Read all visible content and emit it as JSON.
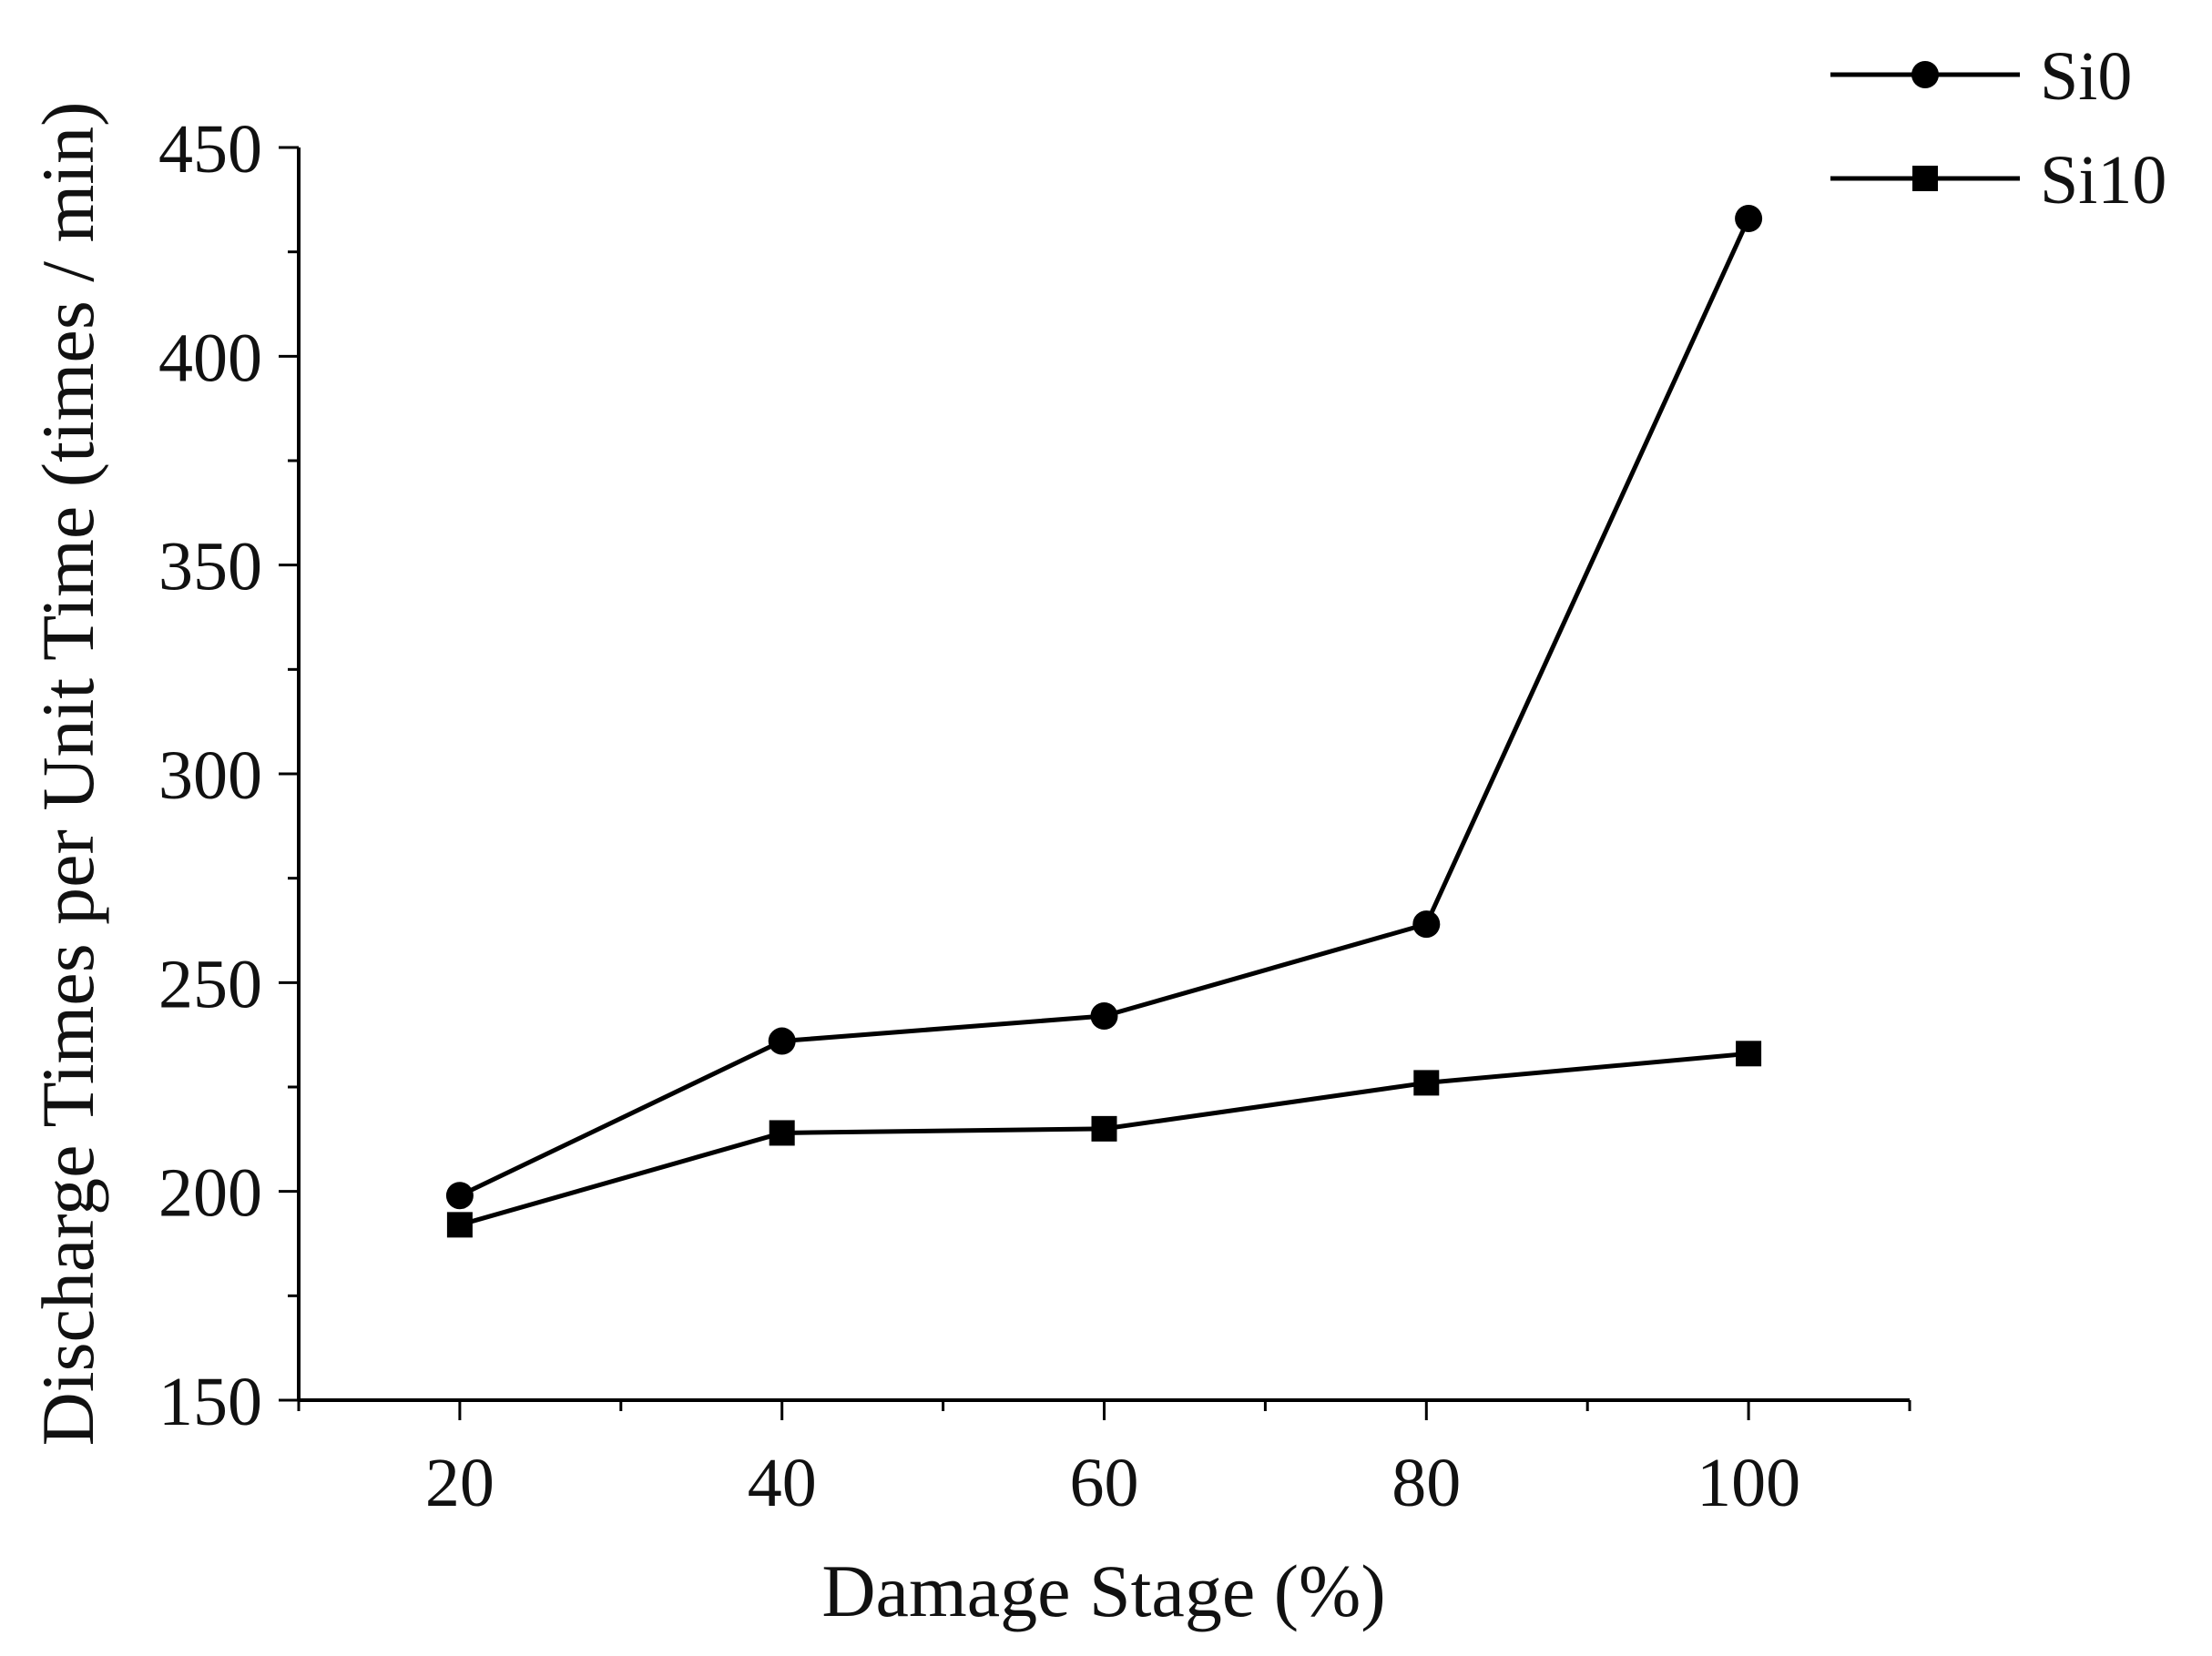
{
  "chart_data": {
    "type": "line",
    "title": "",
    "xlabel": "Damage Stage (%)",
    "ylabel": "Discharge Times per Unit Time (times / min)",
    "x": [
      20,
      40,
      60,
      80,
      100
    ],
    "xlim": [
      10,
      110
    ],
    "ylim": [
      150,
      450
    ],
    "x_ticks": [
      20,
      40,
      60,
      80,
      100
    ],
    "y_ticks": [
      150,
      200,
      250,
      300,
      350,
      400,
      450
    ],
    "x_minor_step": 10,
    "y_minor_step": 25,
    "grid": false,
    "legend_position": "top-right",
    "series": [
      {
        "name": "Si0",
        "marker": "circle",
        "color": "#000000",
        "values": [
          199,
          236,
          242,
          264,
          433
        ]
      },
      {
        "name": "Si10",
        "marker": "square",
        "color": "#000000",
        "values": [
          192,
          214,
          215,
          226,
          233
        ]
      }
    ]
  }
}
